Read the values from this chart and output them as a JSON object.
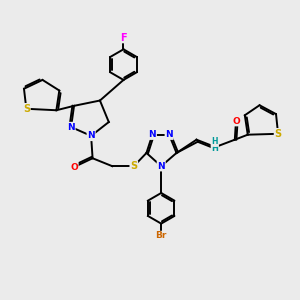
{
  "bg_color": "#ebebeb",
  "bond_color": "#000000",
  "bond_width": 1.4,
  "dbo": 0.055,
  "atom_colors": {
    "N": "#0000ff",
    "S": "#ccaa00",
    "O": "#ff0000",
    "F": "#ff00ff",
    "Br": "#cc6600",
    "H": "#009999",
    "C": "#000000"
  },
  "font_size": 6.5
}
